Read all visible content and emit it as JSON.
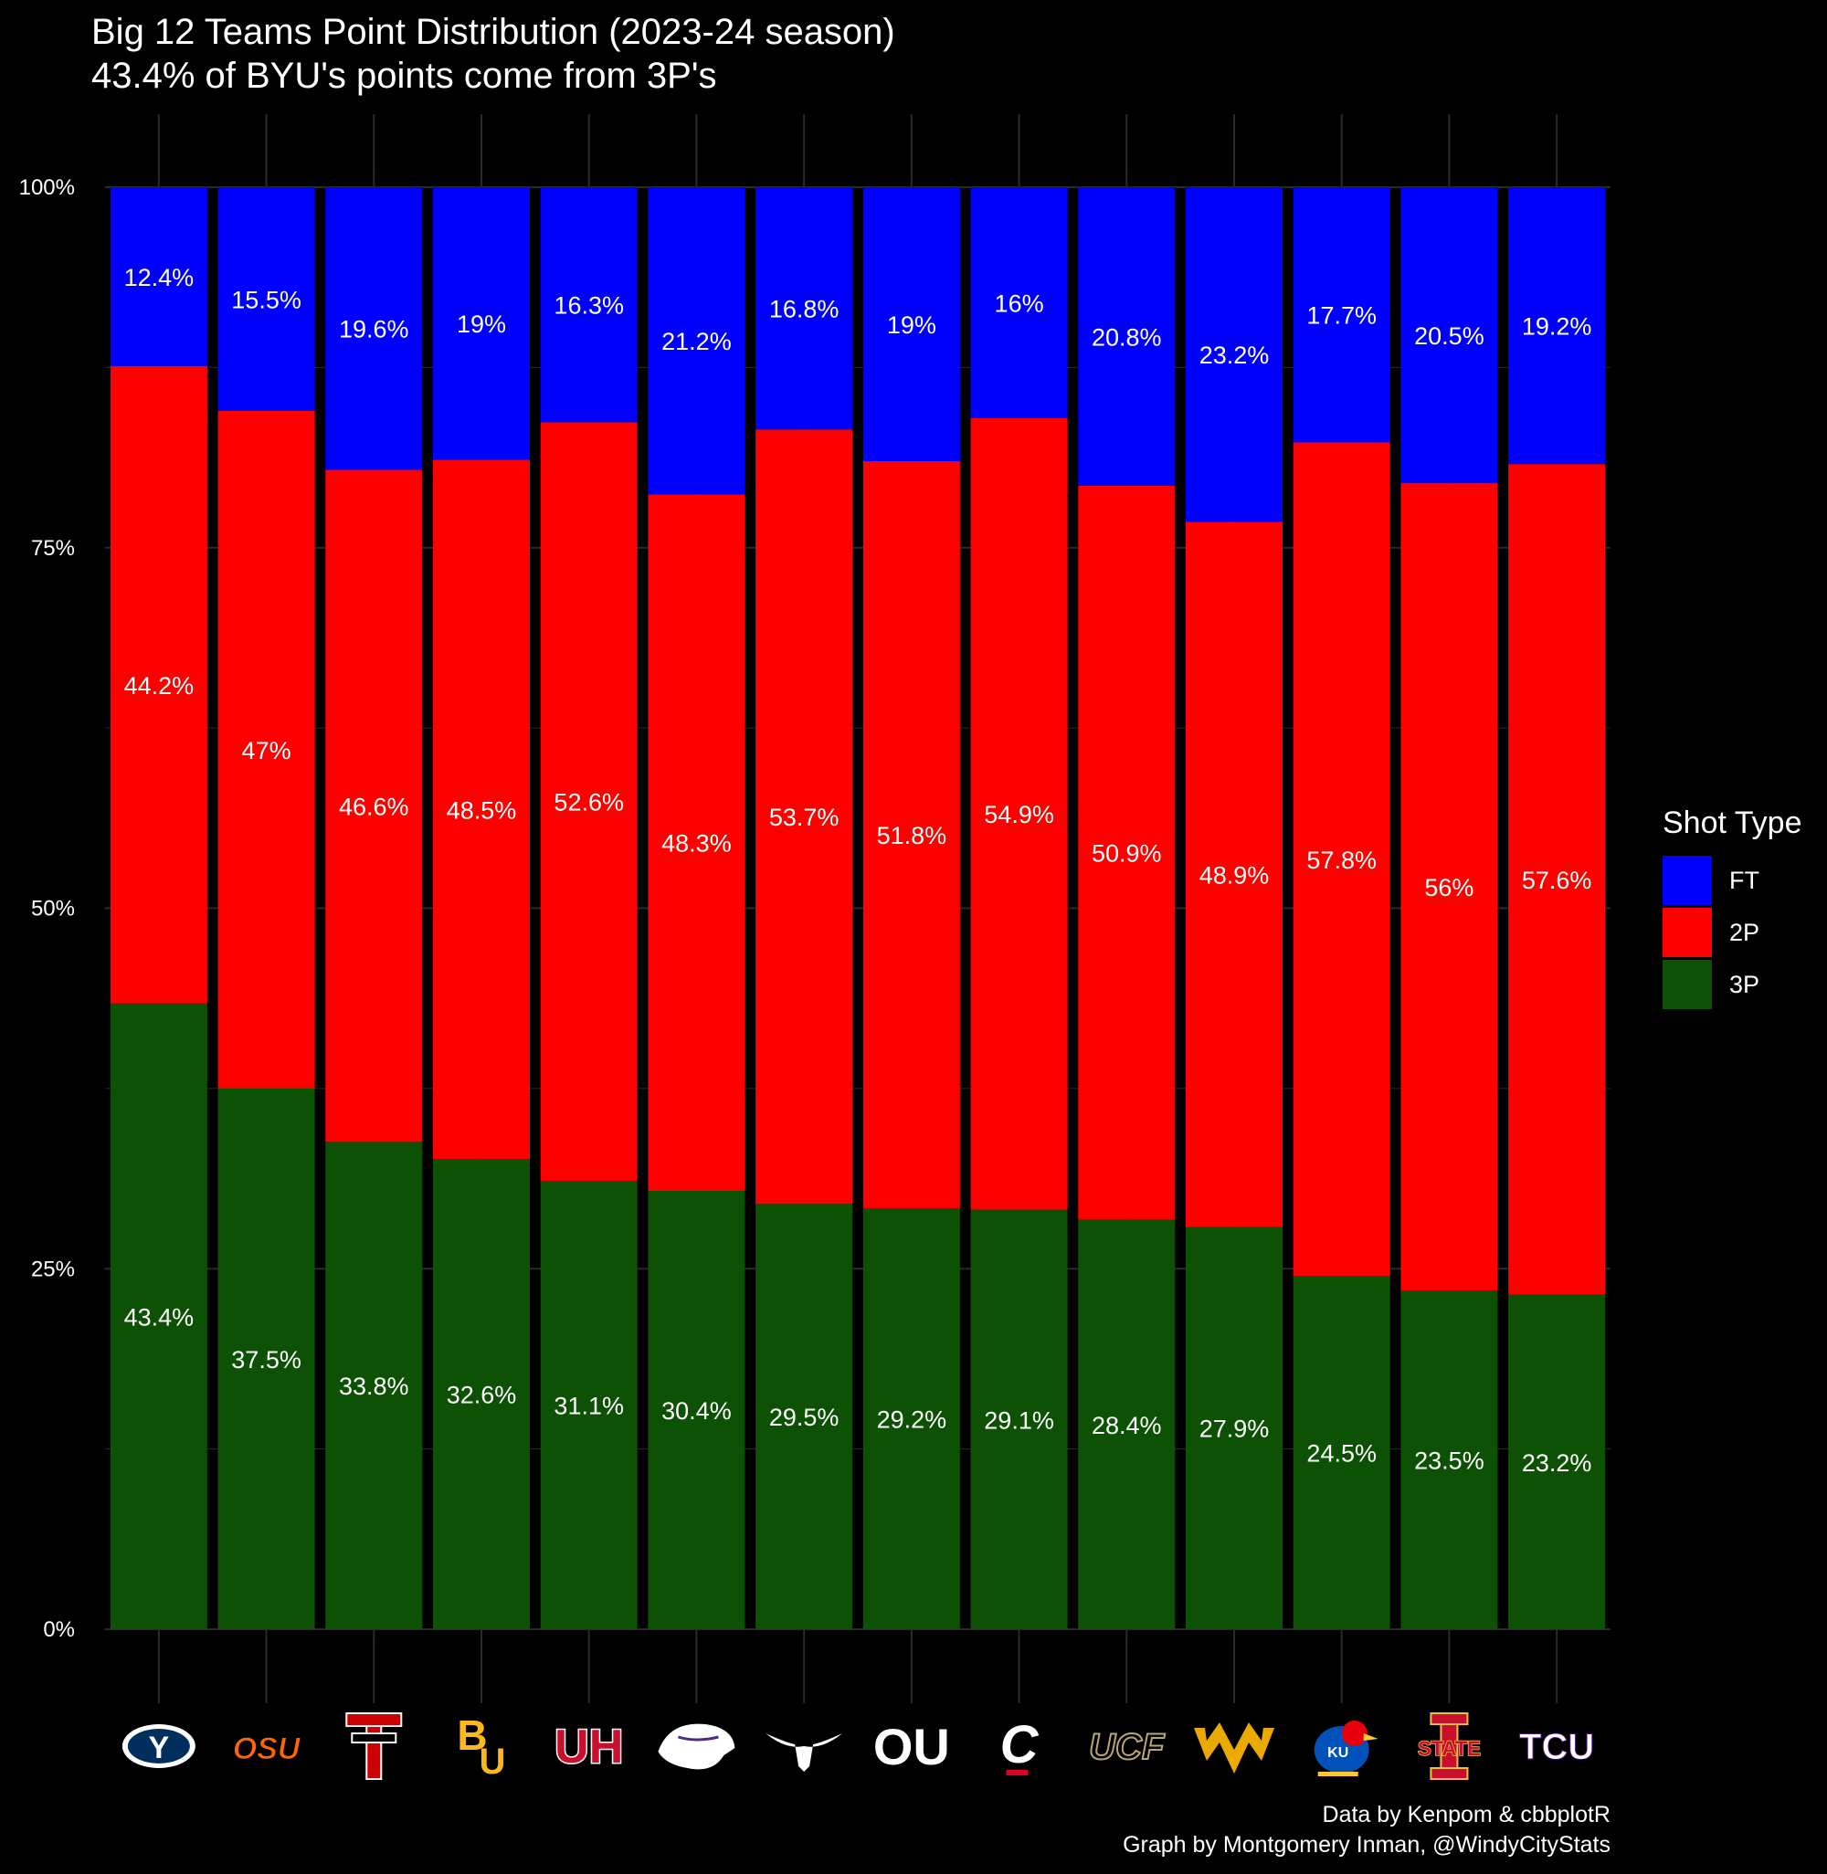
{
  "title": "Big 12 Teams Point Distribution (2023-24 season)",
  "subtitle": "43.4% of BYU's points come from 3P's",
  "caption": [
    "Data by Kenpom & cbbplotR",
    "Graph by Montgomery Inman, @WindyCityStats"
  ],
  "colors": {
    "background": "#000000",
    "FT": "#0000ff",
    "2P": "#ff0000",
    "3P": "#0d5204",
    "grid": "#2a2a2a"
  },
  "chart_data": {
    "type": "bar",
    "stacked": true,
    "categories": [
      "BYU",
      "Oklahoma State",
      "Texas Tech",
      "Baylor",
      "Houston",
      "Kansas State",
      "Texas",
      "Oklahoma",
      "Cincinnati",
      "UCF",
      "West Virginia",
      "Kansas",
      "Iowa State",
      "TCU"
    ],
    "category_logos": [
      "byu-logo",
      "oklahoma-state-logo",
      "texas-tech-logo",
      "baylor-logo",
      "houston-logo",
      "kansas-state-logo",
      "texas-logo",
      "oklahoma-logo",
      "cincinnati-logo",
      "ucf-logo",
      "west-virginia-logo",
      "kansas-logo",
      "iowa-state-logo",
      "tcu-logo"
    ],
    "series": [
      {
        "name": "3P",
        "values": [
          43.4,
          37.5,
          33.8,
          32.6,
          31.1,
          30.4,
          29.5,
          29.2,
          29.1,
          28.4,
          27.9,
          24.5,
          23.5,
          23.2
        ],
        "labels": [
          "43.4%",
          "37.5%",
          "33.8%",
          "32.6%",
          "31.1%",
          "30.4%",
          "29.5%",
          "29.2%",
          "29.1%",
          "28.4%",
          "27.9%",
          "24.5%",
          "23.5%",
          "23.2%"
        ]
      },
      {
        "name": "2P",
        "values": [
          44.2,
          47,
          46.6,
          48.5,
          52.6,
          48.3,
          53.7,
          51.8,
          54.9,
          50.9,
          48.9,
          57.8,
          56,
          57.6
        ],
        "labels": [
          "44.2%",
          "47%",
          "46.6%",
          "48.5%",
          "52.6%",
          "48.3%",
          "53.7%",
          "51.8%",
          "54.9%",
          "50.9%",
          "48.9%",
          "57.8%",
          "56%",
          "57.6%"
        ]
      },
      {
        "name": "FT",
        "values": [
          12.4,
          15.5,
          19.6,
          19,
          16.3,
          21.2,
          16.8,
          19,
          16,
          20.8,
          23.2,
          17.7,
          20.5,
          19.2
        ],
        "labels": [
          "12.4%",
          "15.5%",
          "19.6%",
          "19%",
          "16.3%",
          "21.2%",
          "16.8%",
          "19%",
          "16%",
          "20.8%",
          "23.2%",
          "17.7%",
          "20.5%",
          "19.2%"
        ]
      }
    ],
    "y_ticks": [
      0,
      25,
      50,
      75,
      100
    ],
    "y_tick_labels": [
      "0%",
      "25%",
      "50%",
      "75%",
      "100%"
    ],
    "ylim": [
      0,
      100
    ],
    "grid": true,
    "legend": {
      "title": "Shot Type",
      "position": "right",
      "items": [
        {
          "name": "FT",
          "color": "#0000ff"
        },
        {
          "name": "2P",
          "color": "#ff0000"
        },
        {
          "name": "3P",
          "color": "#0d5204"
        }
      ]
    }
  }
}
